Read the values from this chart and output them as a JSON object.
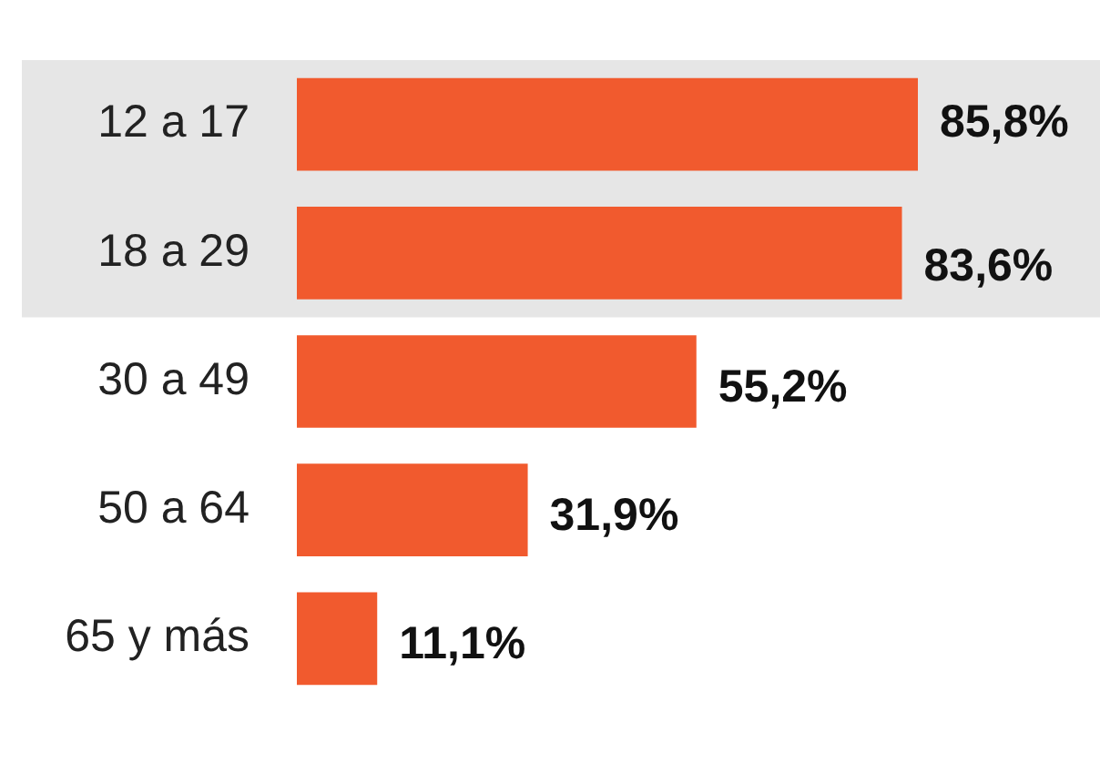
{
  "chart_data": {
    "type": "bar",
    "orientation": "horizontal",
    "categories": [
      "12 a 17",
      "18 a 29",
      "30 a 49",
      "50 a 64",
      "65 y más"
    ],
    "values": [
      85.8,
      83.6,
      55.2,
      31.9,
      11.1
    ],
    "value_labels": [
      "85,8%",
      "83,6%",
      "55,2%",
      "31,9%",
      "11,1%"
    ],
    "color": "#f15a2e",
    "bands": [
      {
        "axis": "y",
        "from": "12 a 17",
        "to": "18 a 29",
        "color": "#e6e6e6"
      }
    ]
  }
}
